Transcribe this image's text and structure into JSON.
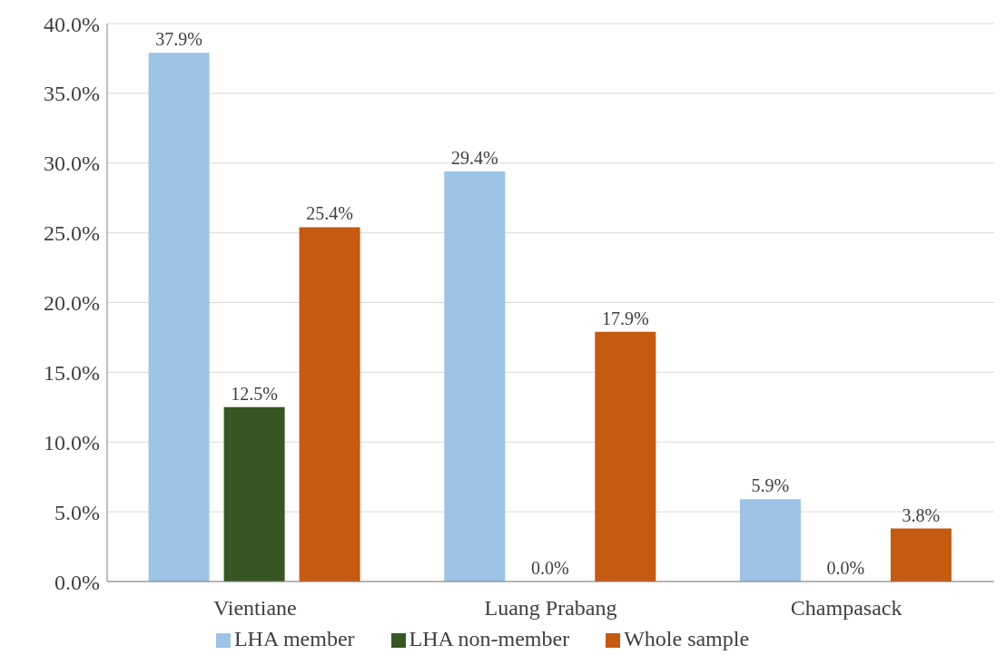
{
  "chart_data": {
    "type": "bar",
    "categories": [
      "Vientiane",
      "Luang Prabang",
      "Champasack"
    ],
    "series": [
      {
        "name": "LHA  member",
        "color": "#9dc3e6",
        "values": [
          37.9,
          29.4,
          5.9
        ],
        "value_labels": [
          "37.9%",
          "29.4%",
          "5.9%"
        ]
      },
      {
        "name": "LHA non-member",
        "color": "#375623",
        "values": [
          12.5,
          0,
          0
        ],
        "value_labels": [
          "12.5%",
          "0.0%",
          "0.0%"
        ]
      },
      {
        "name": "Whole sample",
        "color": "#c55a11",
        "values": [
          25.4,
          17.9,
          3.8
        ],
        "value_labels": [
          "25.4%",
          "17.9%",
          "3.8%"
        ]
      }
    ],
    "ylim": [
      0,
      40
    ],
    "yticks": [
      {
        "value": 0,
        "label": "0.0%"
      },
      {
        "value": 5,
        "label": "5.0%"
      },
      {
        "value": 10,
        "label": "10.0%"
      },
      {
        "value": 15,
        "label": "15.0%"
      },
      {
        "value": 20,
        "label": "20.0%"
      },
      {
        "value": 25,
        "label": "25.0%"
      },
      {
        "value": 30,
        "label": "30.0%"
      },
      {
        "value": 35,
        "label": "35.0%"
      },
      {
        "value": 40,
        "label": "40.0%"
      }
    ],
    "grid": "y",
    "legend": "bottom"
  }
}
